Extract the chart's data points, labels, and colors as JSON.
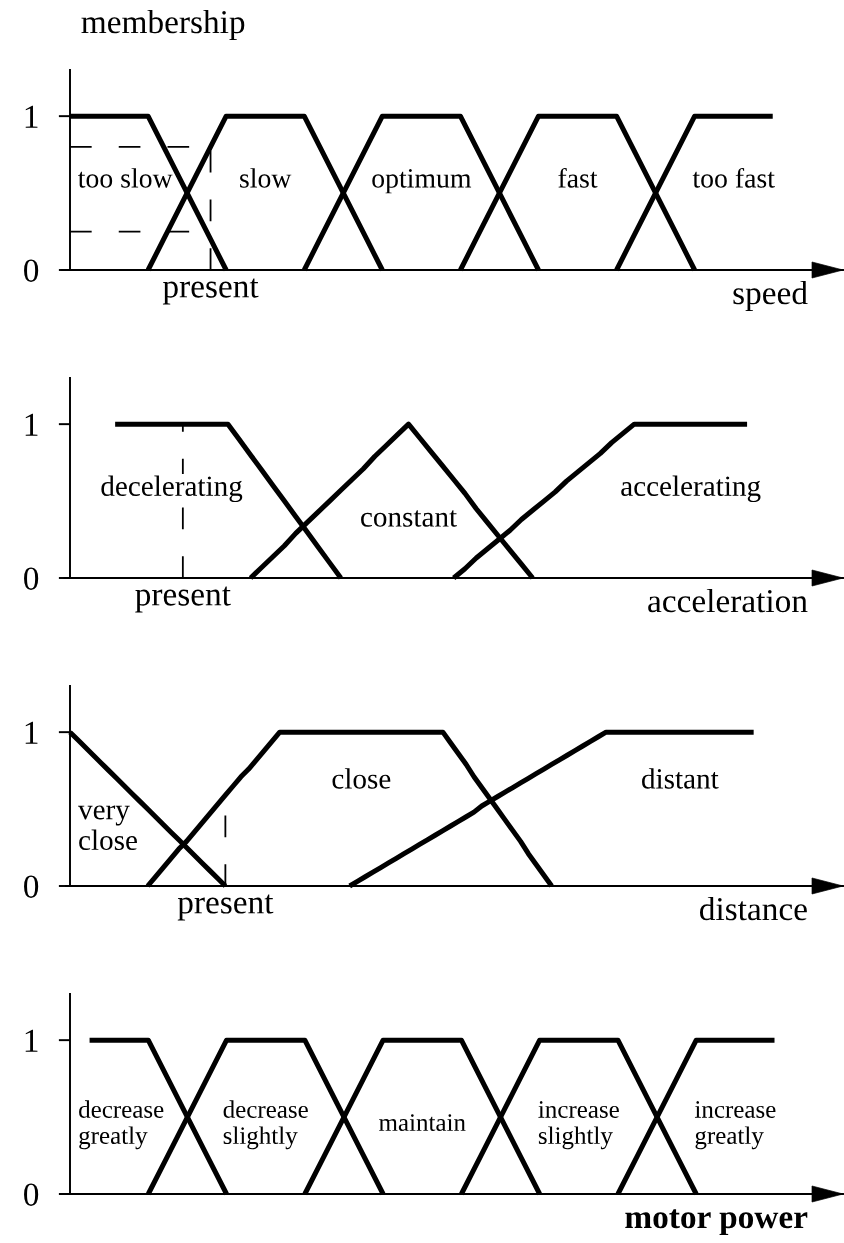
{
  "chart_data": [
    {
      "type": "line",
      "ylabel": "membership",
      "xlabel": "speed",
      "ylim": [
        0,
        1.3
      ],
      "yticks": [
        0,
        1
      ],
      "categories": [
        null,
        null,
        null,
        null,
        null,
        null,
        null,
        null,
        null,
        "present",
        null,
        null,
        null,
        null,
        null,
        null,
        null,
        null,
        null,
        null,
        null,
        null,
        null,
        null,
        null,
        null,
        null,
        null,
        null,
        null,
        null,
        null,
        null,
        null,
        null,
        null,
        null,
        null,
        null,
        null,
        null,
        null,
        null,
        null,
        null,
        null,
        null,
        null,
        null,
        null
      ],
      "series": [
        {
          "name": "too slow",
          "color": "#000000",
          "values": [
            1,
            1,
            1,
            1,
            1,
            1,
            0.8,
            0.6,
            0.4,
            0.2,
            0,
            null,
            null,
            null,
            null,
            null,
            null,
            null,
            null,
            null,
            null,
            null,
            null,
            null,
            null,
            null,
            null,
            null,
            null,
            null,
            null,
            null,
            null,
            null,
            null,
            null,
            null,
            null,
            null,
            null,
            null,
            null,
            null,
            null,
            null,
            null,
            null,
            null,
            null,
            null
          ]
        },
        {
          "name": "slow",
          "color": "#000000",
          "values": [
            null,
            null,
            null,
            null,
            null,
            0,
            0.2,
            0.4,
            0.6,
            0.8,
            1,
            1,
            1,
            1,
            1,
            1,
            0.8,
            0.6,
            0.4,
            0.2,
            0,
            null,
            null,
            null,
            null,
            null,
            null,
            null,
            null,
            null,
            null,
            null,
            null,
            null,
            null,
            null,
            null,
            null,
            null,
            null,
            null,
            null,
            null,
            null,
            null,
            null,
            null,
            null,
            null,
            null
          ]
        },
        {
          "name": "optimum",
          "color": "#000000",
          "values": [
            null,
            null,
            null,
            null,
            null,
            null,
            null,
            null,
            null,
            null,
            null,
            null,
            null,
            null,
            null,
            0,
            0.2,
            0.4,
            0.6,
            0.8,
            1,
            1,
            1,
            1,
            1,
            1,
            0.8,
            0.6,
            0.4,
            0.2,
            0,
            null,
            null,
            null,
            null,
            null,
            null,
            null,
            null,
            null,
            null,
            null,
            null,
            null,
            null,
            null,
            null,
            null,
            null,
            null
          ]
        },
        {
          "name": "fast",
          "color": "#000000",
          "values": [
            null,
            null,
            null,
            null,
            null,
            null,
            null,
            null,
            null,
            null,
            null,
            null,
            null,
            null,
            null,
            null,
            null,
            null,
            null,
            null,
            null,
            null,
            null,
            null,
            null,
            0,
            0.2,
            0.4,
            0.6,
            0.8,
            1,
            1,
            1,
            1,
            1,
            1,
            0.8,
            0.6,
            0.4,
            0.2,
            0,
            null,
            null,
            null,
            null,
            null,
            null,
            null,
            null,
            null
          ]
        },
        {
          "name": "too fast",
          "color": "#000000",
          "values": [
            null,
            null,
            null,
            null,
            null,
            null,
            null,
            null,
            null,
            null,
            null,
            null,
            null,
            null,
            null,
            null,
            null,
            null,
            null,
            null,
            null,
            null,
            null,
            null,
            null,
            null,
            null,
            null,
            null,
            null,
            null,
            null,
            null,
            null,
            null,
            0,
            0.2,
            0.4,
            0.6,
            0.8,
            1,
            1,
            1,
            1,
            1,
            1,
            null,
            null,
            null,
            null
          ]
        }
      ],
      "ref_lines": [
        {
          "axis": "x",
          "value": "present",
          "line_style": "dashed",
          "color": "#000000"
        },
        {
          "axis": "y",
          "value": 0.8,
          "line_style": "dashed",
          "color": "#000000"
        },
        {
          "axis": "y",
          "value": 0.25,
          "line_style": "dashed",
          "color": "#000000"
        }
      ]
    },
    {
      "type": "line",
      "xlabel": "acceleration",
      "ylim": [
        0,
        1.3
      ],
      "yticks": [
        0,
        1
      ],
      "categories": [
        null,
        null,
        null,
        null,
        null,
        null,
        null,
        null,
        null,
        null,
        "present",
        null,
        null,
        null,
        null,
        null,
        null,
        null,
        null,
        null,
        null,
        null,
        null,
        null,
        null,
        null,
        null,
        null,
        null,
        null,
        null,
        null,
        null,
        null,
        null,
        null,
        null,
        null,
        null,
        null,
        null,
        null,
        null,
        null,
        null,
        null,
        null,
        null,
        null,
        null,
        null,
        null,
        null,
        null,
        null,
        null,
        null,
        null,
        null,
        null,
        null,
        null,
        null,
        null,
        null,
        null,
        null,
        null,
        null
      ],
      "series": [
        {
          "name": "decelerating",
          "color": "#000000",
          "values": [
            null,
            null,
            null,
            null,
            1,
            1,
            1,
            1,
            1,
            1,
            1,
            1,
            1,
            1,
            1,
            0.9,
            0.8,
            0.7,
            0.6,
            0.5,
            0.4,
            0.3,
            0.2,
            0.1,
            0,
            null,
            null,
            null,
            null,
            null,
            null,
            null,
            null,
            null,
            null,
            null,
            null,
            null,
            null,
            null,
            null,
            null,
            null,
            null,
            null,
            null,
            null,
            null,
            null,
            null,
            null,
            null,
            null,
            null,
            null,
            null,
            null,
            null,
            null,
            null,
            null,
            null,
            null,
            null,
            null,
            null,
            null,
            null,
            null
          ]
        },
        {
          "name": "constant",
          "color": "#000000",
          "values": [
            null,
            null,
            null,
            null,
            null,
            null,
            null,
            null,
            null,
            null,
            null,
            null,
            null,
            null,
            null,
            null,
            0,
            0.07,
            0.14,
            0.21,
            0.29,
            0.36,
            0.43,
            0.5,
            0.57,
            0.64,
            0.71,
            0.79,
            0.86,
            0.93,
            1,
            0.91,
            0.82,
            0.73,
            0.64,
            0.55,
            0.45,
            0.36,
            0.27,
            0.18,
            0.09,
            0,
            null,
            null,
            null,
            null,
            null,
            null,
            null,
            null,
            null,
            null,
            null,
            null,
            null,
            null,
            null,
            null,
            null,
            null,
            null,
            null,
            null,
            null,
            null,
            null,
            null,
            null,
            null
          ]
        },
        {
          "name": "accelerating",
          "color": "#000000",
          "values": [
            null,
            null,
            null,
            null,
            null,
            null,
            null,
            null,
            null,
            null,
            null,
            null,
            null,
            null,
            null,
            null,
            null,
            null,
            null,
            null,
            null,
            null,
            null,
            null,
            null,
            null,
            null,
            null,
            null,
            null,
            null,
            null,
            null,
            null,
            0,
            0.06,
            0.13,
            0.19,
            0.25,
            0.31,
            0.38,
            0.44,
            0.5,
            0.56,
            0.63,
            0.69,
            0.75,
            0.81,
            0.88,
            0.94,
            1,
            1,
            1,
            1,
            1,
            1,
            1,
            1,
            1,
            1,
            1,
            null,
            null,
            null,
            null,
            null,
            null,
            null,
            null
          ]
        }
      ],
      "ref_lines": [
        {
          "axis": "x",
          "value": "present",
          "line_style": "dashed",
          "color": "#000000"
        }
      ]
    },
    {
      "type": "line",
      "xlabel": "distance",
      "ylim": [
        0,
        1.3
      ],
      "yticks": [
        0,
        1
      ],
      "categories": [
        null,
        null,
        null,
        null,
        null,
        null,
        null,
        null,
        null,
        null,
        null,
        null,
        null,
        null,
        null,
        null,
        null,
        null,
        null,
        null,
        "present",
        null,
        null,
        null,
        null,
        null,
        null,
        null,
        null,
        null,
        null,
        null,
        null,
        null,
        null,
        null,
        null,
        null,
        null,
        null,
        null,
        null,
        null,
        null,
        null,
        null,
        null,
        null,
        null,
        null,
        null,
        null,
        null,
        null,
        null,
        null,
        null,
        null,
        null,
        null,
        null,
        null,
        null,
        null,
        null,
        null,
        null,
        null,
        null,
        null,
        null,
        null,
        null,
        null,
        null,
        null,
        null,
        null,
        null,
        null,
        null,
        null,
        null,
        null,
        null,
        null,
        null,
        null,
        null,
        null,
        null,
        null,
        null,
        null,
        null,
        null,
        null,
        null,
        null,
        null
      ],
      "series": [
        {
          "name": "very\nclose",
          "color": "#000000",
          "values": [
            1,
            0.95,
            0.9,
            0.85,
            0.8,
            0.75,
            0.7,
            0.65,
            0.6,
            0.55,
            0.5,
            0.45,
            0.4,
            0.35,
            0.3,
            0.25,
            0.2,
            0.15,
            0.1,
            0.05,
            0,
            null,
            null,
            null,
            null,
            null,
            null,
            null,
            null,
            null,
            null,
            null,
            null,
            null,
            null,
            null,
            null,
            null,
            null,
            null,
            null,
            null,
            null,
            null,
            null,
            null,
            null,
            null,
            null,
            null,
            null,
            null,
            null,
            null,
            null,
            null,
            null,
            null,
            null,
            null,
            null,
            null,
            null,
            null,
            null,
            null,
            null,
            null,
            null,
            null,
            null,
            null,
            null,
            null,
            null,
            null,
            null,
            null,
            null,
            null,
            null,
            null,
            null,
            null,
            null,
            null,
            null,
            null,
            null,
            null,
            null,
            null,
            null,
            null,
            null,
            null,
            null,
            null,
            null,
            null
          ]
        },
        {
          "name": "close",
          "color": "#000000",
          "values": [
            null,
            null,
            null,
            null,
            null,
            null,
            null,
            null,
            null,
            null,
            0,
            0.06,
            0.12,
            0.18,
            0.24,
            0.29,
            0.35,
            0.41,
            0.47,
            0.53,
            0.59,
            0.65,
            0.71,
            0.76,
            0.82,
            0.88,
            0.94,
            1,
            1,
            1,
            1,
            1,
            1,
            1,
            1,
            1,
            1,
            1,
            1,
            1,
            1,
            1,
            1,
            1,
            1,
            1,
            1,
            1,
            1,
            0.93,
            0.86,
            0.79,
            0.71,
            0.64,
            0.57,
            0.5,
            0.43,
            0.36,
            0.29,
            0.21,
            0.14,
            0.07,
            0,
            null,
            null,
            null,
            null,
            null,
            null,
            null,
            null,
            null,
            null,
            null,
            null,
            null,
            null,
            null,
            null,
            null,
            null,
            null,
            null,
            null,
            null,
            null,
            null,
            null,
            null,
            null,
            null,
            null,
            null,
            null,
            null,
            null,
            null,
            null,
            null,
            null
          ]
        },
        {
          "name": "distant",
          "color": "#000000",
          "values": [
            null,
            null,
            null,
            null,
            null,
            null,
            null,
            null,
            null,
            null,
            null,
            null,
            null,
            null,
            null,
            null,
            null,
            null,
            null,
            null,
            null,
            null,
            null,
            null,
            null,
            null,
            null,
            null,
            null,
            null,
            null,
            null,
            null,
            null,
            null,
            null,
            0,
            0.03,
            0.06,
            0.09,
            0.12,
            0.15,
            0.18,
            0.21,
            0.24,
            0.27,
            0.3,
            0.33,
            0.36,
            0.39,
            0.42,
            0.45,
            0.48,
            0.52,
            0.55,
            0.58,
            0.61,
            0.64,
            0.67,
            0.7,
            0.73,
            0.76,
            0.79,
            0.82,
            0.85,
            0.88,
            0.91,
            0.94,
            0.97,
            1,
            1,
            1,
            1,
            1,
            1,
            1,
            1,
            1,
            1,
            1,
            1,
            1,
            1,
            1,
            1,
            1,
            1,
            1,
            1,
            null,
            null,
            null,
            null,
            null,
            null,
            null,
            null,
            null,
            null,
            null
          ]
        }
      ],
      "ref_lines": [
        {
          "axis": "x",
          "value": "present",
          "line_style": "dashed",
          "color": "#000000"
        }
      ]
    },
    {
      "type": "line",
      "xlabel": "motor power",
      "ylim": [
        0,
        1.3
      ],
      "yticks": [
        0,
        1
      ],
      "tick_labels": "y",
      "categories": [
        null,
        null,
        null,
        null,
        null,
        null,
        null,
        null,
        null,
        null,
        null,
        null,
        null,
        null,
        null,
        null,
        null,
        null,
        null,
        null,
        null,
        null,
        null,
        null,
        null,
        null,
        null,
        null,
        null,
        null,
        null,
        null,
        null,
        null,
        null,
        null,
        null,
        null,
        null,
        null
      ],
      "series": [
        {
          "name": "decrease\ngreatly",
          "color": "#000000",
          "values": [
            null,
            1,
            1,
            1,
            1,
            0.75,
            0.5,
            0.25,
            0,
            null,
            null,
            null,
            null,
            null,
            null,
            null,
            null,
            null,
            null,
            null,
            null,
            null,
            null,
            null,
            null,
            null,
            null,
            null,
            null,
            null,
            null,
            null,
            null,
            null,
            null,
            null,
            null,
            null,
            null,
            null
          ]
        },
        {
          "name": "decrease\nslightly",
          "color": "#000000",
          "values": [
            null,
            null,
            null,
            null,
            0,
            0.25,
            0.5,
            0.75,
            1,
            1,
            1,
            1,
            1,
            0.75,
            0.5,
            0.25,
            0,
            null,
            null,
            null,
            null,
            null,
            null,
            null,
            null,
            null,
            null,
            null,
            null,
            null,
            null,
            null,
            null,
            null,
            null,
            null,
            null,
            null,
            null,
            null
          ]
        },
        {
          "name": "maintain",
          "color": "#000000",
          "values": [
            null,
            null,
            null,
            null,
            null,
            null,
            null,
            null,
            null,
            null,
            null,
            null,
            0,
            0.25,
            0.5,
            0.75,
            1,
            1,
            1,
            1,
            1,
            0.75,
            0.5,
            0.25,
            0,
            null,
            null,
            null,
            null,
            null,
            null,
            null,
            null,
            null,
            null,
            null,
            null,
            null,
            null,
            null
          ]
        },
        {
          "name": "increase\nslightly",
          "color": "#000000",
          "values": [
            null,
            null,
            null,
            null,
            null,
            null,
            null,
            null,
            null,
            null,
            null,
            null,
            null,
            null,
            null,
            null,
            null,
            null,
            null,
            null,
            0,
            0.25,
            0.5,
            0.75,
            1,
            1,
            1,
            1,
            1,
            0.75,
            0.5,
            0.25,
            0,
            null,
            null,
            null,
            null,
            null,
            null,
            null
          ]
        },
        {
          "name": "increase\ngreatly",
          "color": "#000000",
          "values": [
            null,
            null,
            null,
            null,
            null,
            null,
            null,
            null,
            null,
            null,
            null,
            null,
            null,
            null,
            null,
            null,
            null,
            null,
            null,
            null,
            null,
            null,
            null,
            null,
            null,
            null,
            null,
            null,
            0,
            0.25,
            0.5,
            0.75,
            1,
            1,
            1,
            1,
            1,
            null,
            null,
            null
          ]
        }
      ]
    }
  ]
}
